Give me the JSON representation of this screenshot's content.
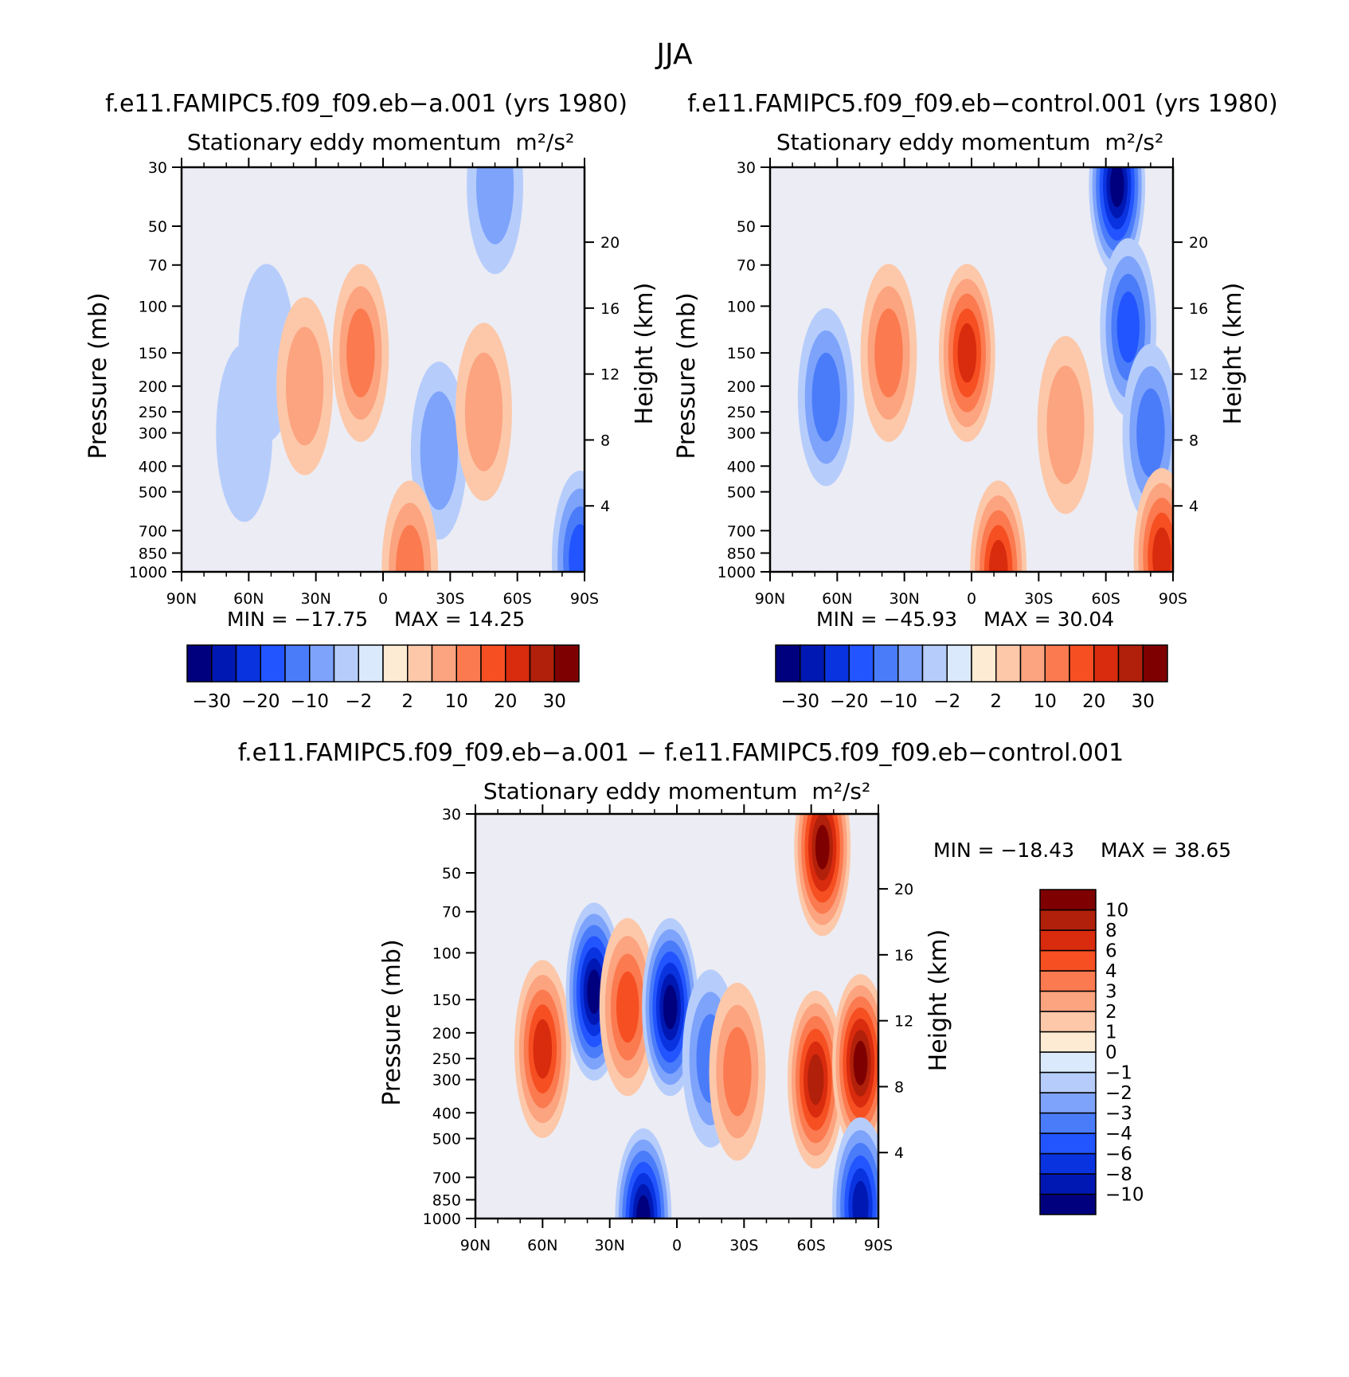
{
  "figure": {
    "season": "JJA"
  },
  "chart_data": [
    {
      "type": "heatmap",
      "id": "panel1",
      "title": "f.e11.FAMIPC5.f09_f09.eb−a.001 (yrs 1980)",
      "subtitle": "Stationary eddy momentum",
      "units": "m²/s²",
      "ylabel": "Pressure (mb)",
      "ylabel_right": "Height (km)",
      "pressure_ticks": [
        30,
        50,
        70,
        100,
        150,
        200,
        250,
        300,
        400,
        500,
        700,
        850,
        1000
      ],
      "height_ticks": [
        20,
        16,
        12,
        8,
        4
      ],
      "lat_ticks": [
        "90N",
        "60N",
        "30N",
        "0",
        "30S",
        "60S",
        "90S"
      ],
      "xlim": [
        90,
        -90
      ],
      "ylim_mb": [
        30,
        1000
      ],
      "min_text": "MIN = −17.75",
      "max_text": "MAX = 14.25",
      "min": -17.75,
      "max": 14.25,
      "colorbar": {
        "orientation": "horizontal",
        "levels": [
          -30,
          -25,
          -20,
          -15,
          -10,
          -5,
          -2,
          0,
          2,
          5,
          10,
          15,
          20,
          25,
          30
        ],
        "labels": [
          "−30",
          "−20",
          "−10",
          "−2",
          "2",
          "10",
          "20",
          "30"
        ],
        "label_levels": [
          -30,
          -20,
          -10,
          -2,
          2,
          10,
          20,
          30
        ]
      },
      "features": [
        {
          "lat": 62,
          "p": 300,
          "value": -4
        },
        {
          "lat": 52,
          "p": 150,
          "value": -2
        },
        {
          "lat": 35,
          "p": 200,
          "value": 8
        },
        {
          "lat": 10,
          "p": 150,
          "value": 13
        },
        {
          "lat": -25,
          "p": 350,
          "value": -6
        },
        {
          "lat": -45,
          "p": 250,
          "value": 7
        },
        {
          "lat": -50,
          "p": 35,
          "value": -7
        },
        {
          "lat": -12,
          "p": 980,
          "value": 14
        },
        {
          "lat": -88,
          "p": 900,
          "value": -17
        }
      ]
    },
    {
      "type": "heatmap",
      "id": "panel2",
      "title": "f.e11.FAMIPC5.f09_f09.eb−control.001 (yrs 1980)",
      "subtitle": "Stationary eddy momentum",
      "units": "m²/s²",
      "ylabel": "Pressure (mb)",
      "ylabel_right": "Height (km)",
      "pressure_ticks": [
        30,
        50,
        70,
        100,
        150,
        200,
        250,
        300,
        400,
        500,
        700,
        850,
        1000
      ],
      "height_ticks": [
        20,
        16,
        12,
        8,
        4
      ],
      "lat_ticks": [
        "90N",
        "60N",
        "30N",
        "0",
        "30S",
        "60S",
        "90S"
      ],
      "xlim": [
        90,
        -90
      ],
      "ylim_mb": [
        30,
        1000
      ],
      "min_text": "MIN = −45.93",
      "max_text": "MAX = 30.04",
      "min": -45.93,
      "max": 30.04,
      "colorbar": {
        "orientation": "horizontal",
        "levels": [
          -30,
          -25,
          -20,
          -15,
          -10,
          -5,
          -2,
          0,
          2,
          5,
          10,
          15,
          20,
          25,
          30
        ],
        "labels": [
          "−30",
          "−20",
          "−10",
          "−2",
          "2",
          "10",
          "20",
          "30"
        ],
        "label_levels": [
          -30,
          -20,
          -10,
          -2,
          2,
          10,
          20,
          30
        ]
      },
      "features": [
        {
          "lat": 65,
          "p": 220,
          "value": -10
        },
        {
          "lat": 37,
          "p": 150,
          "value": 14
        },
        {
          "lat": 2,
          "p": 150,
          "value": 24
        },
        {
          "lat": -42,
          "p": 280,
          "value": 5
        },
        {
          "lat": -65,
          "p": 35,
          "value": -45
        },
        {
          "lat": -70,
          "p": 120,
          "value": -18
        },
        {
          "lat": -80,
          "p": 300,
          "value": -14
        },
        {
          "lat": -12,
          "p": 980,
          "value": 22
        },
        {
          "lat": -85,
          "p": 880,
          "value": 20
        }
      ]
    },
    {
      "type": "heatmap",
      "id": "panel3",
      "title": "f.e11.FAMIPC5.f09_f09.eb−a.001 − f.e11.FAMIPC5.f09_f09.eb−control.001",
      "subtitle": "Stationary eddy momentum",
      "units": "m²/s²",
      "ylabel": "Pressure (mb)",
      "ylabel_right": "Height (km)",
      "pressure_ticks": [
        30,
        50,
        70,
        100,
        150,
        200,
        250,
        300,
        400,
        500,
        700,
        850,
        1000
      ],
      "height_ticks": [
        20,
        16,
        12,
        8,
        4
      ],
      "lat_ticks": [
        "90N",
        "60N",
        "30N",
        "0",
        "30S",
        "60S",
        "90S"
      ],
      "xlim": [
        90,
        -90
      ],
      "ylim_mb": [
        30,
        1000
      ],
      "min_text": "MIN = −18.43",
      "max_text": "MAX = 38.65",
      "min": -18.43,
      "max": 38.65,
      "colorbar": {
        "orientation": "vertical",
        "levels": [
          -10,
          -8,
          -6,
          -4,
          -3,
          -2,
          -1,
          0,
          1,
          2,
          3,
          4,
          6,
          8,
          10
        ],
        "labels": [
          "−10",
          "−8",
          "−6",
          "−4",
          "−3",
          "−2",
          "−1",
          "0",
          "1",
          "2",
          "3",
          "4",
          "6",
          "8",
          "10"
        ],
        "label_levels": [
          -10,
          -8,
          -6,
          -4,
          -3,
          -2,
          -1,
          0,
          1,
          2,
          3,
          4,
          6,
          8,
          10
        ]
      },
      "features": [
        {
          "lat": 60,
          "p": 230,
          "value": 7
        },
        {
          "lat": 37,
          "p": 140,
          "value": -14
        },
        {
          "lat": 22,
          "p": 160,
          "value": 4
        },
        {
          "lat": 3,
          "p": 160,
          "value": -14
        },
        {
          "lat": -15,
          "p": 250,
          "value": -3
        },
        {
          "lat": -27,
          "p": 280,
          "value": 3
        },
        {
          "lat": -65,
          "p": 40,
          "value": 38
        },
        {
          "lat": -62,
          "p": 300,
          "value": 9
        },
        {
          "lat": -82,
          "p": 260,
          "value": 10
        },
        {
          "lat": 15,
          "p": 990,
          "value": -11
        },
        {
          "lat": -82,
          "p": 900,
          "value": -8
        }
      ]
    }
  ]
}
